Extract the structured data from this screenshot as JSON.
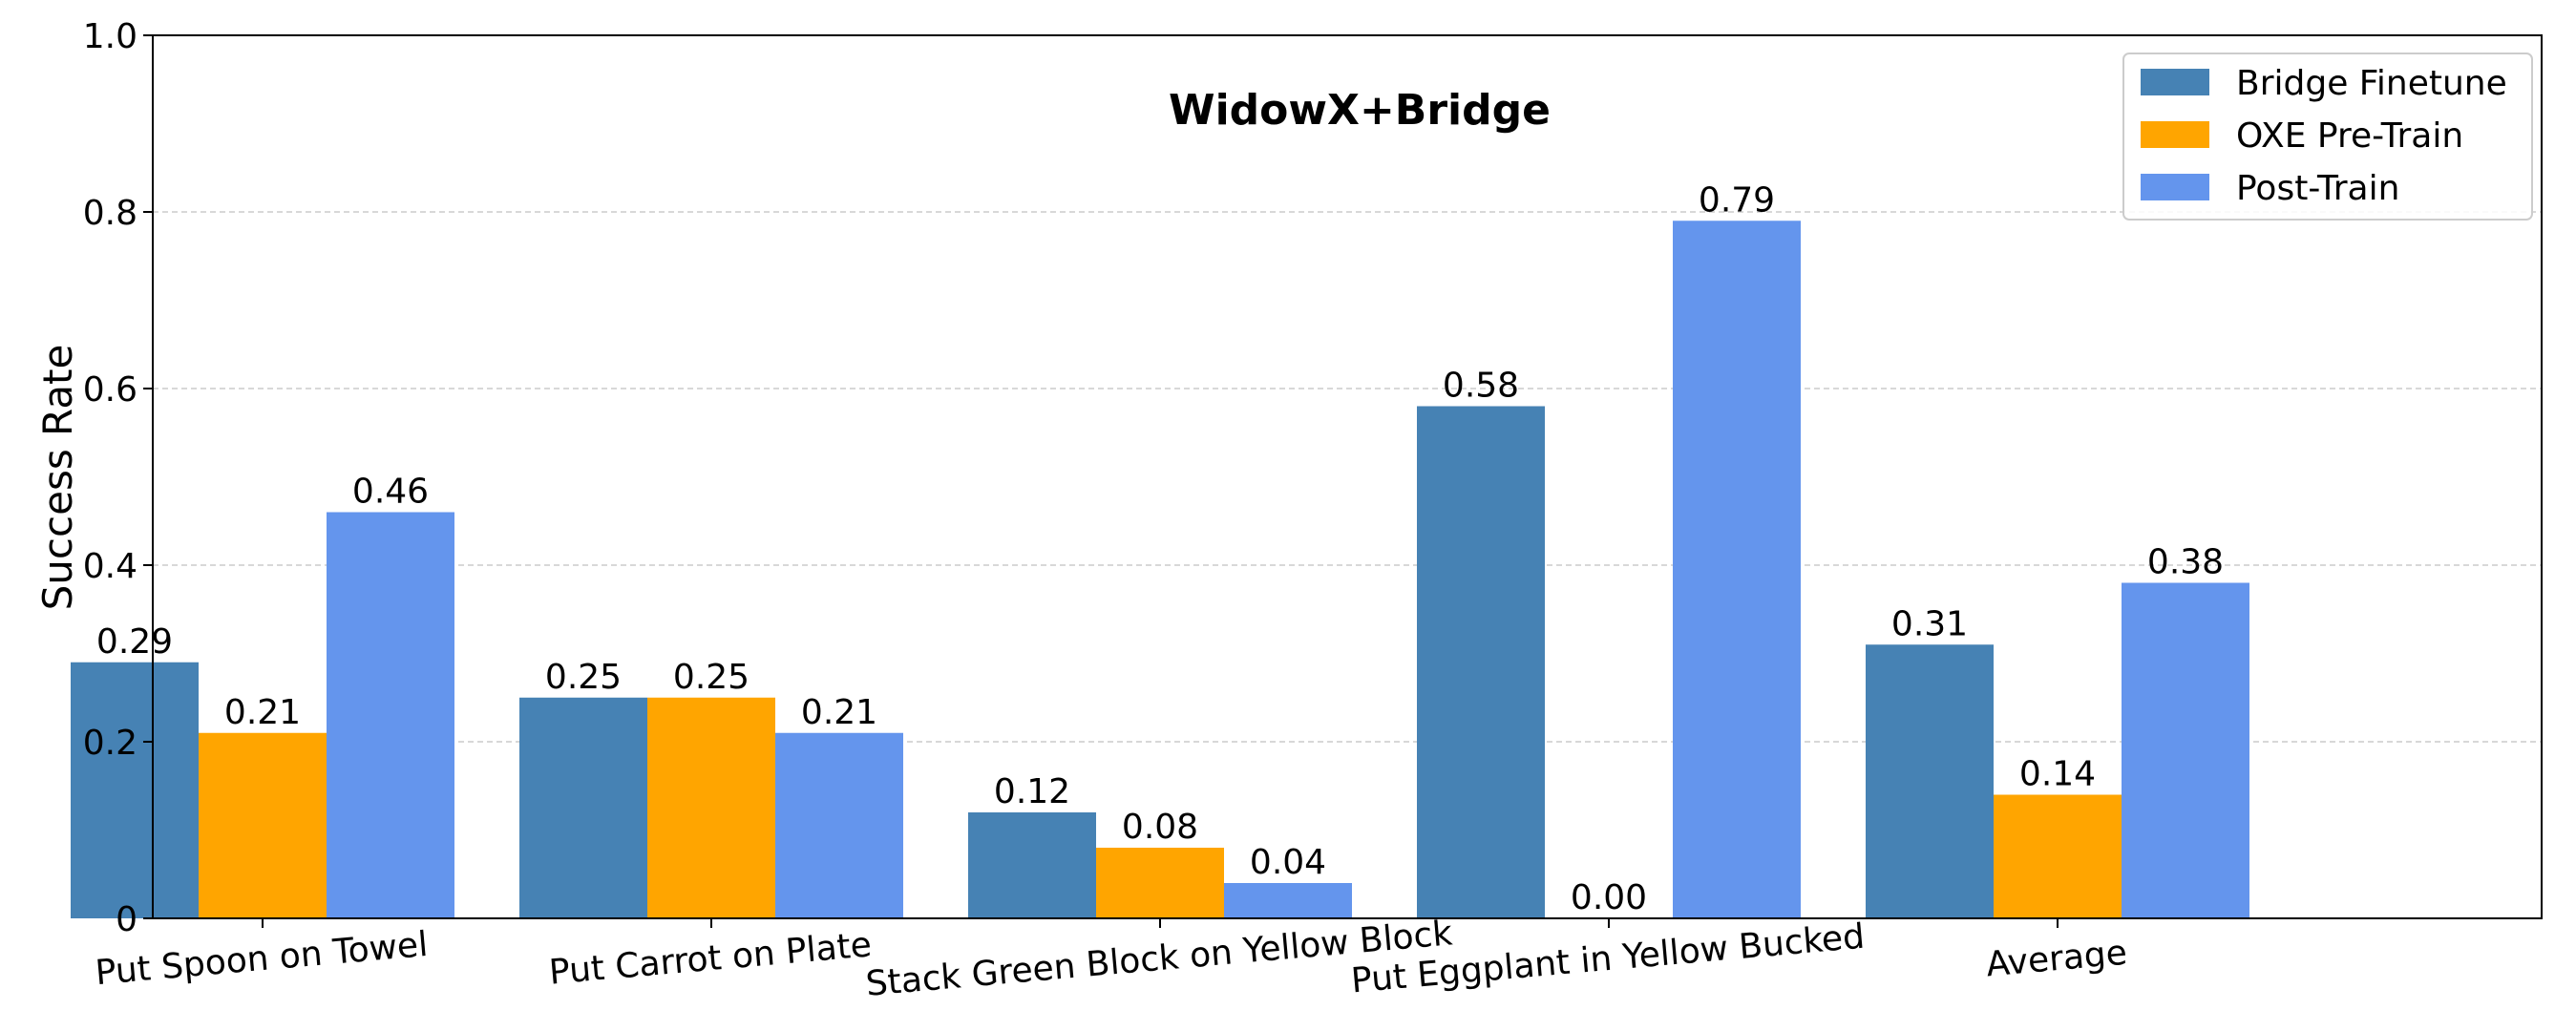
{
  "chart_data": {
    "type": "bar",
    "title": "WidowX+Bridge",
    "xlabel": "",
    "ylabel": "Success Rate",
    "ylim": [
      0,
      1.0
    ],
    "yticks": [
      0,
      0.2,
      0.4,
      0.6,
      0.8,
      1.0
    ],
    "ytick_labels": [
      "0",
      "0.2",
      "0.4",
      "0.6",
      "0.8",
      "1.0"
    ],
    "grid": "y-dashed",
    "legend_position": "top-right",
    "categories": [
      "Put Spoon on Towel",
      "Put Carrot on Plate",
      "Stack Green Block on Yellow Block",
      "Put Eggplant in Yellow Bucked",
      "Average"
    ],
    "series": [
      {
        "name": "Bridge Finetune",
        "color": "#4682b4",
        "values": [
          0.29,
          0.25,
          0.12,
          0.58,
          0.31
        ],
        "labels": [
          "0.29",
          "0.25",
          "0.12",
          "0.58",
          "0.31"
        ]
      },
      {
        "name": "OXE Pre-Train",
        "color": "#ffa500",
        "values": [
          0.21,
          0.25,
          0.08,
          0.0,
          0.14
        ],
        "labels": [
          "0.21",
          "0.25",
          "0.08",
          "0.00",
          "0.14"
        ]
      },
      {
        "name": "Post-Train",
        "color": "#6495ed",
        "values": [
          0.46,
          0.21,
          0.04,
          0.79,
          0.38
        ],
        "labels": [
          "0.46",
          "0.21",
          "0.04",
          "0.79",
          "0.38"
        ]
      }
    ]
  }
}
